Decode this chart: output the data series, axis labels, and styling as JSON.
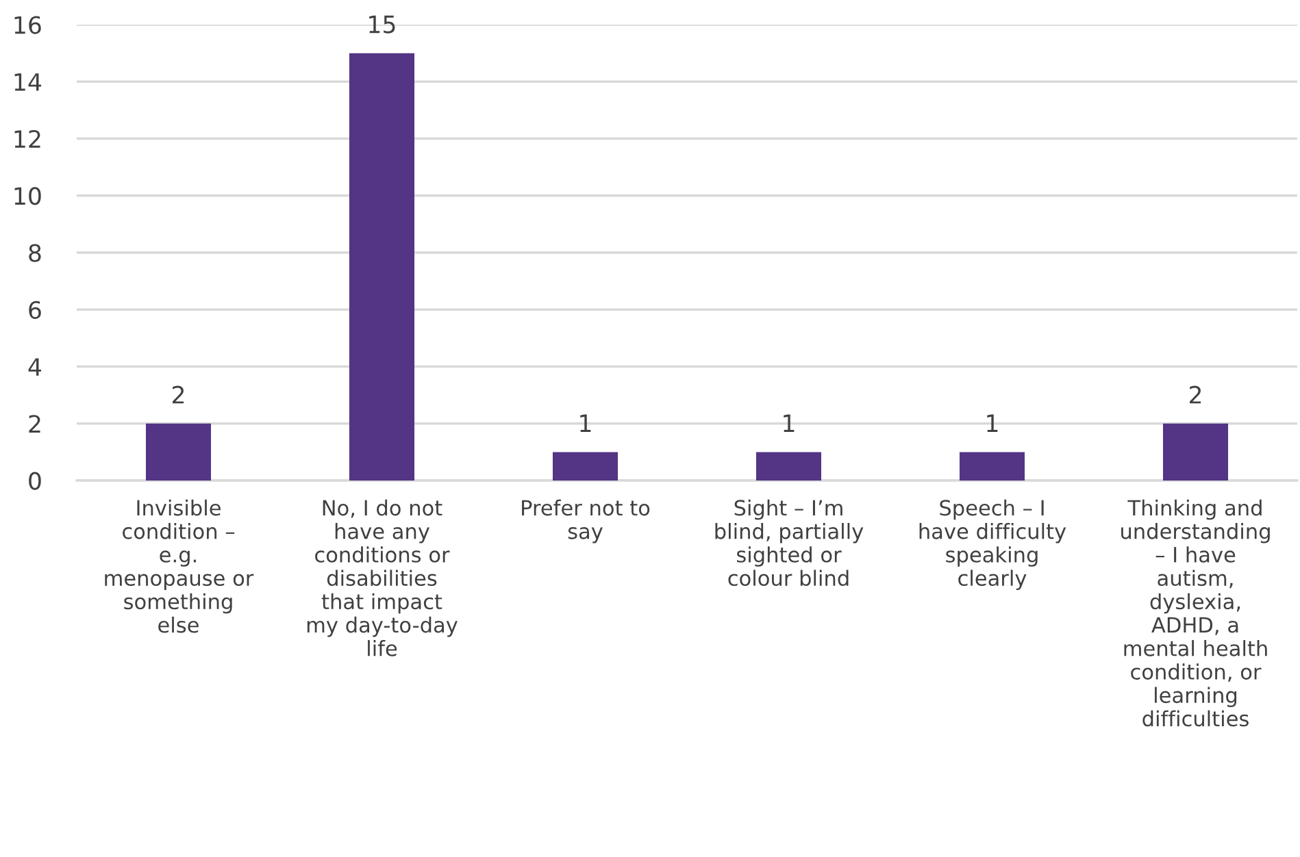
{
  "chart_data": {
    "type": "bar",
    "categories": [
      "Invisible\ncondition –\ne.g.\nmenopause or\nsomething\nelse",
      "No, I do not\nhave any\nconditions or\ndisabilities\nthat impact\nmy day-to-day\nlife",
      "Prefer not to\nsay",
      "Sight – I’m\nblind, partially\nsighted or\ncolour blind",
      "Speech – I\nhave difficulty\nspeaking\nclearly",
      "Thinking and\nunderstanding\n– I have\nautism,\ndyslexia,\nADHD, a\nmental health\ncondition, or\nlearning\ndifficulties"
    ],
    "values": [
      2,
      15,
      1,
      1,
      1,
      2
    ],
    "color": "#543484",
    "ylim": [
      0,
      16
    ],
    "yticks": [
      0,
      2,
      4,
      6,
      8,
      10,
      12,
      14,
      16
    ],
    "grid": "y",
    "data_labels": true,
    "legend": false
  }
}
